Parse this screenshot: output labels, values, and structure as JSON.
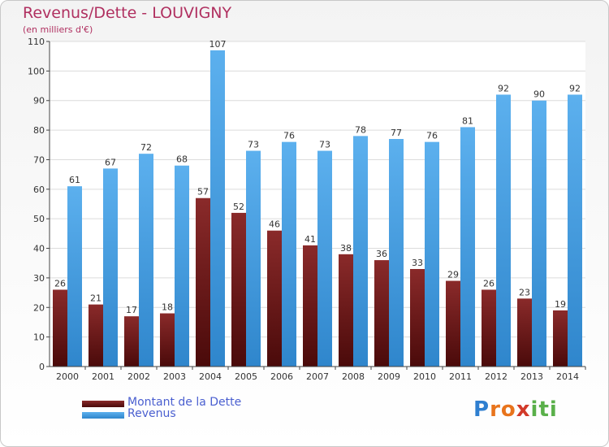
{
  "chart_data": {
    "type": "bar",
    "title": "Revenus/Dette - LOUVIGNY",
    "subtitle": "(en milliers d'€)",
    "categories": [
      "2000",
      "2001",
      "2002",
      "2003",
      "2004",
      "2005",
      "2006",
      "2007",
      "2008",
      "2009",
      "2010",
      "2011",
      "2012",
      "2013",
      "2014"
    ],
    "series": [
      {
        "name": "Montant de la Dette",
        "color": "#7a1d1d",
        "values": [
          26,
          21,
          17,
          18,
          57,
          52,
          46,
          41,
          38,
          36,
          33,
          29,
          26,
          23,
          19
        ]
      },
      {
        "name": "Revenus",
        "color": "#4aa3e6",
        "values": [
          61,
          67,
          72,
          68,
          107,
          73,
          76,
          73,
          78,
          77,
          76,
          81,
          92,
          90,
          92
        ]
      }
    ],
    "ylim": [
      0,
      110
    ],
    "yticks": [
      0,
      10,
      20,
      30,
      40,
      50,
      60,
      70,
      80,
      90,
      100,
      110
    ],
    "grid": true,
    "legend_position": "bottom-left"
  },
  "logo": {
    "letters": [
      "P",
      "r",
      "o",
      "x",
      "i",
      "t",
      "i"
    ],
    "colors": [
      "#2f7fd0",
      "#e8741c",
      "#e8741c",
      "#d23a2a",
      "#5ab04a",
      "#5ab04a",
      "#5ab04a"
    ]
  }
}
